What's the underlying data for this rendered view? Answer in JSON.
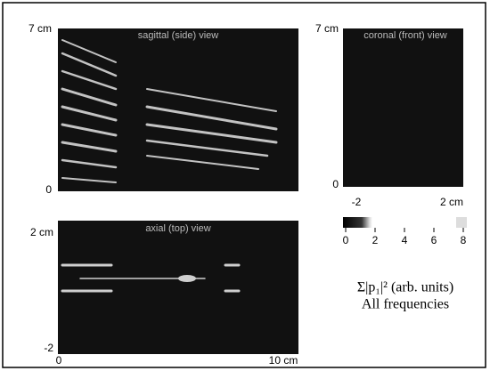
{
  "sagittal": {
    "title": "sagittal (side) view",
    "y_top": "7 cm",
    "y_bottom": "0"
  },
  "coronal": {
    "title": "coronal (front) view",
    "y_top": "7 cm",
    "y_bottom": "0",
    "x_left": "-2",
    "x_right": "2 cm"
  },
  "axial": {
    "title": "axial (top) view",
    "y_top": "2 cm",
    "y_bottom": "-2",
    "x_left": "0",
    "x_right": "10 cm"
  },
  "colorbar": {
    "ticks": [
      "0",
      "2",
      "4",
      "6",
      "8"
    ],
    "label": "Σ|p₁|² (arb. units)",
    "caption": "All frequencies"
  }
}
